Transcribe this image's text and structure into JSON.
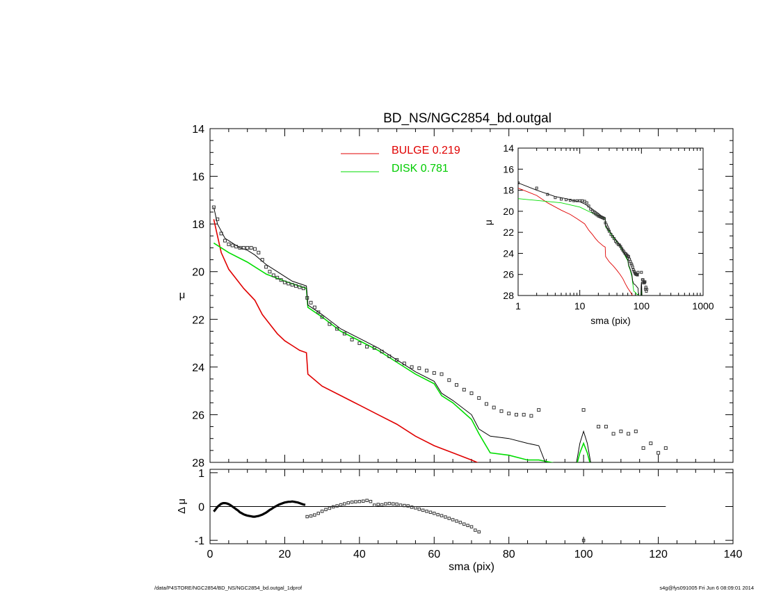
{
  "footer": {
    "left": "/data/P4STORE/NGC2854/BD_NS/NGC2854_bd.outgal_1dprof",
    "right": "s4g@fys091005  Fri Jun  6 08:09:01 2014"
  },
  "colors": {
    "bulge": "#e00000",
    "disk": "#00dd00",
    "model": "#000000",
    "data": "#333333"
  },
  "chart_data": [
    {
      "type": "line",
      "title": "BD_NS/NGC2854_bd.outgal",
      "xlabel": "",
      "ylabel": "μ",
      "xlim": [
        0,
        140
      ],
      "ylim": [
        28,
        14
      ],
      "xticks": [
        0,
        20,
        40,
        60,
        80,
        100,
        120,
        140
      ],
      "yticks": [
        14,
        16,
        18,
        20,
        22,
        24,
        26,
        28
      ],
      "legend": {
        "placement": "top-center",
        "entries": [
          {
            "text": "BULGE  0.219",
            "color": "#e00000"
          },
          {
            "text": "DISK  0.781",
            "color": "#00dd00"
          }
        ]
      },
      "series": [
        {
          "role": "bulge",
          "color": "#e00000",
          "x": [
            1,
            2,
            3,
            5,
            7,
            9,
            12,
            14,
            16,
            18,
            20,
            22,
            24,
            25.8,
            26.2,
            30,
            35,
            40,
            45,
            50,
            55,
            60,
            65,
            70,
            73
          ],
          "y": [
            17.8,
            18.5,
            19.2,
            19.9,
            20.3,
            20.7,
            21.2,
            21.8,
            22.2,
            22.6,
            22.9,
            23.1,
            23.3,
            23.4,
            24.3,
            24.8,
            25.2,
            25.6,
            26.0,
            26.4,
            26.9,
            27.3,
            27.6,
            27.9,
            28.1
          ]
        },
        {
          "role": "disk",
          "color": "#00dd00",
          "x": [
            1,
            5,
            10,
            15,
            20,
            25.8,
            26.2,
            30,
            35,
            40,
            45,
            50,
            55,
            60,
            62,
            65,
            70,
            72,
            75,
            80,
            85,
            88,
            98,
            99,
            100,
            101,
            102
          ],
          "y": [
            18.8,
            19.2,
            19.6,
            20.1,
            20.4,
            20.7,
            21.5,
            21.9,
            22.5,
            22.9,
            23.3,
            23.8,
            24.3,
            24.7,
            25.2,
            25.5,
            26.2,
            26.8,
            27.6,
            27.7,
            27.9,
            27.9,
            28.2,
            27.6,
            27.2,
            27.6,
            28.2
          ]
        },
        {
          "role": "model",
          "color": "#000000",
          "x": [
            1,
            2,
            4,
            6,
            8,
            10,
            12,
            15,
            18,
            20,
            22,
            25.8,
            26.2,
            30,
            35,
            40,
            45,
            50,
            55,
            60,
            62,
            65,
            70,
            72,
            75,
            80,
            85,
            88,
            90,
            98,
            99,
            100,
            101,
            102
          ],
          "y": [
            17.3,
            18.0,
            18.6,
            18.8,
            19.0,
            19.1,
            19.3,
            19.7,
            20.0,
            20.2,
            20.4,
            20.6,
            21.4,
            21.8,
            22.4,
            22.8,
            23.2,
            23.7,
            24.2,
            24.6,
            25.1,
            25.4,
            26.0,
            26.6,
            26.9,
            27.0,
            27.2,
            27.3,
            28.1,
            28.1,
            27.2,
            26.7,
            27.2,
            28.1
          ]
        },
        {
          "role": "data",
          "color": "#333333",
          "x": [
            1,
            2,
            3,
            4,
            5,
            6,
            7,
            8,
            9,
            10,
            11,
            12,
            13,
            14,
            15,
            16,
            17,
            18,
            19,
            20,
            21,
            22,
            23,
            24,
            25,
            26,
            27,
            28,
            29,
            30,
            32,
            34,
            36,
            38,
            40,
            42,
            44,
            46,
            48,
            50,
            52,
            54,
            56,
            58,
            60,
            62,
            64,
            66,
            68,
            70,
            72,
            74,
            76,
            78,
            80,
            82,
            84,
            86,
            88,
            100,
            104,
            106,
            108,
            110,
            112,
            114,
            116,
            118,
            120,
            122
          ],
          "y": [
            17.3,
            17.8,
            18.4,
            18.7,
            18.85,
            18.9,
            18.95,
            19.0,
            19.0,
            19.0,
            19.0,
            19.05,
            19.2,
            19.5,
            19.8,
            20.0,
            20.15,
            20.25,
            20.35,
            20.45,
            20.5,
            20.55,
            20.6,
            20.65,
            20.7,
            21.1,
            21.3,
            21.5,
            21.7,
            21.9,
            22.2,
            22.4,
            22.6,
            22.85,
            23.0,
            23.15,
            23.2,
            23.35,
            23.55,
            23.7,
            23.85,
            24.0,
            24.05,
            24.15,
            24.25,
            24.3,
            24.55,
            24.75,
            24.95,
            25.1,
            25.3,
            25.55,
            25.7,
            25.85,
            25.95,
            26.0,
            26.0,
            26.05,
            25.8,
            25.8,
            26.5,
            26.5,
            26.8,
            26.7,
            26.8,
            26.7,
            27.4,
            27.2,
            27.6,
            27.4
          ]
        }
      ]
    },
    {
      "type": "scatter",
      "xlabel": "sma (pix)",
      "ylabel": "Δ μ",
      "xlim": [
        0,
        140
      ],
      "ylim": [
        -1.1,
        1.1
      ],
      "xticks": [
        0,
        20,
        40,
        60,
        80,
        100,
        120,
        140
      ],
      "yticks": [
        -1,
        0,
        1
      ],
      "zero_line": [
        0,
        122
      ],
      "series": [
        {
          "role": "residual_early",
          "color": "#000000",
          "x": [
            1.0,
            1.5,
            2.0,
            2.5,
            3.0,
            3.5,
            4.0,
            4.5,
            5.0,
            5.5,
            6.0,
            6.5,
            7.0,
            7.5,
            8.0,
            8.5,
            9.0,
            9.5,
            10.0,
            10.5,
            11.0,
            11.5,
            12.0,
            12.5,
            13.0,
            13.5,
            14.0,
            14.5,
            15.0,
            15.5,
            16.0,
            16.5,
            17.0,
            17.5,
            18.0,
            18.5,
            19.0,
            19.5,
            20.0,
            20.5,
            21.0,
            21.5,
            22.0,
            22.5,
            23.0,
            23.5,
            24.0,
            24.5,
            25.0,
            25.5
          ],
          "y": [
            -0.15,
            -0.08,
            -0.01,
            0.04,
            0.08,
            0.1,
            0.1,
            0.09,
            0.07,
            0.04,
            0.0,
            -0.04,
            -0.08,
            -0.12,
            -0.17,
            -0.2,
            -0.23,
            -0.25,
            -0.27,
            -0.28,
            -0.29,
            -0.3,
            -0.3,
            -0.29,
            -0.28,
            -0.26,
            -0.24,
            -0.21,
            -0.18,
            -0.14,
            -0.1,
            -0.07,
            -0.03,
            0.0,
            0.03,
            0.06,
            0.08,
            0.1,
            0.12,
            0.13,
            0.14,
            0.14,
            0.15,
            0.14,
            0.13,
            0.12,
            0.1,
            0.08,
            0.06,
            0.05
          ]
        },
        {
          "role": "residual_late",
          "color": "#333333",
          "x": [
            26,
            27,
            28,
            29,
            30,
            31,
            32,
            33,
            34,
            35,
            36,
            37,
            38,
            39,
            40,
            41,
            42,
            43,
            44,
            45,
            46,
            47,
            48,
            49,
            50,
            51,
            52,
            53,
            54,
            55,
            56,
            57,
            58,
            59,
            60,
            61,
            62,
            63,
            64,
            65,
            66,
            67,
            68,
            69,
            70,
            71,
            72,
            100
          ],
          "y": [
            -0.3,
            -0.28,
            -0.25,
            -0.2,
            -0.14,
            -0.09,
            -0.05,
            -0.01,
            0.02,
            0.05,
            0.08,
            0.11,
            0.13,
            0.14,
            0.15,
            0.16,
            0.18,
            0.15,
            0.04,
            0.06,
            0.05,
            0.08,
            0.09,
            0.08,
            0.07,
            0.04,
            0.03,
            0.02,
            -0.02,
            -0.04,
            -0.08,
            -0.11,
            -0.14,
            -0.17,
            -0.2,
            -0.24,
            -0.27,
            -0.31,
            -0.35,
            -0.39,
            -0.43,
            -0.47,
            -0.52,
            -0.56,
            -0.6,
            -0.7,
            -0.75,
            -1.0
          ]
        }
      ]
    },
    {
      "type": "line",
      "xlabel": "sma (pix)",
      "ylabel": "μ",
      "xscale": "log",
      "xlim": [
        1,
        1000
      ],
      "ylim": [
        28,
        14
      ],
      "xticks": [
        1,
        10,
        100,
        1000
      ],
      "yticks": [
        14,
        16,
        18,
        20,
        22,
        24,
        26,
        28
      ],
      "placement": "top-right inset"
    }
  ]
}
